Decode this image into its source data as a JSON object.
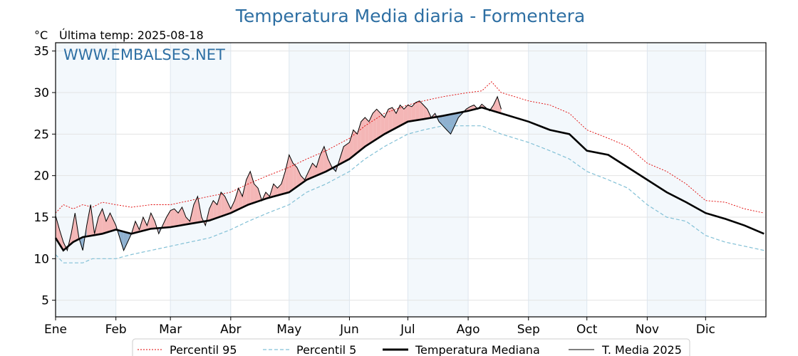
{
  "chart_data": {
    "type": "line",
    "title": "Temperatura Media diaria - Formentera",
    "unit_label": "°C",
    "last_temp_label": "Última temp: 2025-08-18",
    "watermark": "WWW.EMBALSES.NET",
    "ylim": [
      3,
      36
    ],
    "yticks": [
      5,
      10,
      15,
      20,
      25,
      30,
      35
    ],
    "months": [
      "Ene",
      "Feb",
      "Mar",
      "Abr",
      "May",
      "Jun",
      "Jul",
      "Ago",
      "Sep",
      "Oct",
      "Nov",
      "Dic"
    ],
    "month_start_days": [
      1,
      32,
      60,
      91,
      121,
      152,
      182,
      213,
      244,
      274,
      305,
      335
    ],
    "days_in_year": 365,
    "grid": true,
    "alternating_month_shading": true,
    "legend_position": "bottom",
    "series_median": {
      "name": "Temperatura Mediana",
      "x": [
        1,
        5,
        10,
        15,
        20,
        25,
        32,
        40,
        50,
        60,
        70,
        80,
        91,
        100,
        110,
        121,
        130,
        140,
        152,
        160,
        170,
        182,
        190,
        200,
        213,
        220,
        230,
        244,
        255,
        265,
        274,
        285,
        295,
        305,
        315,
        325,
        335,
        345,
        355,
        365
      ],
      "y": [
        12.5,
        11.0,
        12.0,
        12.6,
        12.8,
        13.0,
        13.5,
        13.0,
        13.6,
        13.8,
        14.2,
        14.6,
        15.5,
        16.5,
        17.3,
        18.0,
        19.5,
        20.5,
        22.0,
        23.5,
        25.0,
        26.5,
        26.8,
        27.2,
        27.8,
        28.2,
        27.5,
        26.5,
        25.5,
        25.0,
        23.0,
        22.5,
        21.0,
        19.5,
        18.0,
        16.8,
        15.5,
        14.8,
        14.0,
        13.0
      ]
    },
    "series_p95": {
      "name": "Percentil 95",
      "x": [
        1,
        5,
        10,
        15,
        20,
        25,
        32,
        40,
        50,
        60,
        70,
        80,
        91,
        100,
        110,
        121,
        130,
        140,
        152,
        160,
        170,
        182,
        190,
        200,
        213,
        220,
        225,
        230,
        244,
        255,
        265,
        274,
        285,
        295,
        305,
        315,
        325,
        335,
        345,
        355,
        365
      ],
      "y": [
        15.5,
        16.5,
        16.0,
        16.5,
        16.2,
        16.8,
        16.5,
        16.2,
        16.5,
        16.5,
        17.0,
        17.5,
        18.0,
        19.0,
        20.0,
        21.0,
        22.0,
        23.0,
        24.5,
        26.0,
        27.5,
        28.5,
        29.0,
        29.5,
        30.0,
        30.2,
        31.3,
        30.0,
        29.0,
        28.5,
        27.5,
        25.5,
        24.5,
        23.5,
        21.5,
        20.5,
        19.0,
        17.0,
        16.8,
        16.0,
        15.5
      ]
    },
    "series_p5": {
      "name": "Percentil 5",
      "x": [
        1,
        5,
        10,
        15,
        20,
        25,
        32,
        40,
        50,
        60,
        70,
        80,
        91,
        100,
        110,
        121,
        130,
        140,
        152,
        160,
        170,
        182,
        190,
        200,
        213,
        220,
        230,
        244,
        255,
        265,
        274,
        285,
        295,
        305,
        315,
        325,
        335,
        345,
        355,
        365
      ],
      "y": [
        10.5,
        9.5,
        9.5,
        9.5,
        10.0,
        10.0,
        10.0,
        10.5,
        11.0,
        11.5,
        12.0,
        12.5,
        13.5,
        14.5,
        15.5,
        16.5,
        18.0,
        19.0,
        20.5,
        22.0,
        23.5,
        25.0,
        25.5,
        26.0,
        26.0,
        26.0,
        25.0,
        24.0,
        23.0,
        22.0,
        20.5,
        19.5,
        18.5,
        16.5,
        15.0,
        14.5,
        12.8,
        12.0,
        11.5,
        11.0
      ]
    },
    "series_2025": {
      "name": "T. Media 2025",
      "x": [
        1,
        3,
        5,
        7,
        9,
        11,
        13,
        15,
        17,
        19,
        21,
        23,
        25,
        27,
        29,
        32,
        34,
        36,
        38,
        40,
        42,
        44,
        46,
        48,
        50,
        52,
        54,
        56,
        58,
        60,
        62,
        64,
        66,
        68,
        70,
        72,
        74,
        76,
        78,
        80,
        82,
        84,
        86,
        88,
        91,
        93,
        95,
        97,
        99,
        101,
        103,
        105,
        107,
        109,
        111,
        113,
        115,
        117,
        119,
        121,
        123,
        125,
        127,
        129,
        131,
        133,
        135,
        137,
        139,
        141,
        143,
        145,
        147,
        149,
        152,
        154,
        156,
        158,
        160,
        162,
        164,
        166,
        168,
        170,
        172,
        174,
        176,
        178,
        180,
        182,
        184,
        186,
        188,
        190,
        192,
        194,
        196,
        198,
        200,
        202,
        204,
        206,
        208,
        210,
        212,
        214,
        216,
        218,
        220,
        222,
        224,
        226,
        228,
        230
      ],
      "y": [
        15.2,
        13.5,
        12.0,
        11.0,
        13.0,
        15.5,
        12.5,
        11.0,
        14.0,
        16.5,
        13.0,
        15.0,
        16.0,
        14.5,
        15.5,
        14.0,
        12.5,
        11.0,
        12.0,
        13.0,
        14.5,
        13.5,
        15.0,
        14.0,
        15.5,
        14.5,
        13.0,
        14.0,
        15.0,
        15.8,
        16.0,
        15.5,
        16.2,
        15.0,
        14.5,
        16.5,
        17.5,
        15.0,
        14.0,
        16.0,
        17.0,
        16.5,
        18.0,
        17.5,
        16.0,
        17.0,
        18.5,
        17.5,
        19.5,
        20.5,
        19.0,
        18.5,
        17.0,
        18.0,
        17.5,
        19.0,
        18.5,
        19.0,
        20.5,
        22.5,
        21.5,
        21.0,
        20.0,
        19.5,
        20.5,
        21.5,
        21.0,
        22.5,
        23.5,
        22.0,
        21.0,
        20.5,
        22.0,
        23.5,
        24.0,
        25.5,
        25.0,
        26.5,
        27.0,
        26.5,
        27.5,
        28.0,
        27.5,
        27.0,
        28.0,
        28.2,
        27.5,
        28.5,
        28.0,
        28.5,
        28.3,
        28.8,
        29.0,
        28.5,
        28.0,
        27.0,
        27.5,
        26.5,
        26.0,
        25.5,
        25.0,
        26.0,
        27.0,
        27.5,
        28.0,
        28.3,
        28.5,
        28.0,
        28.6,
        28.2,
        27.8,
        28.5,
        29.5,
        28.0
      ]
    }
  }
}
